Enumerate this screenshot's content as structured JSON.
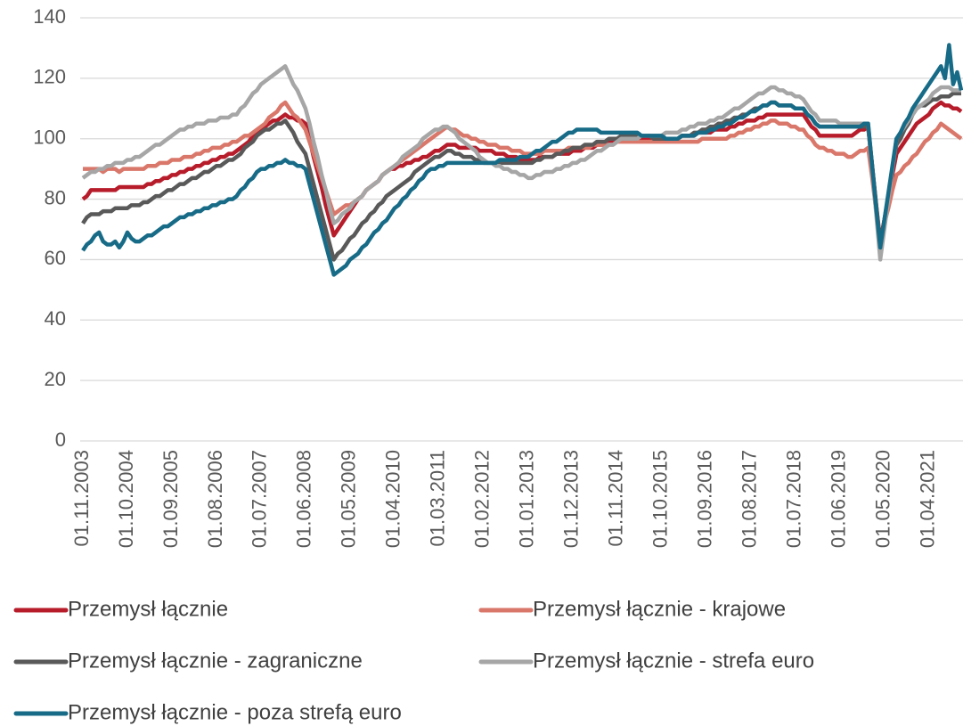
{
  "chart_data": {
    "type": "line",
    "categories": [
      "01.11.2003",
      null,
      null,
      null,
      null,
      null,
      null,
      null,
      null,
      null,
      null,
      "01.10.2004",
      null,
      null,
      null,
      null,
      null,
      null,
      null,
      null,
      null,
      null,
      "01.09.2005",
      null,
      null,
      null,
      null,
      null,
      null,
      null,
      null,
      null,
      null,
      "01.08.2006",
      null,
      null,
      null,
      null,
      null,
      null,
      null,
      null,
      null,
      null,
      "01.07.2007",
      null,
      null,
      null,
      null,
      null,
      null,
      null,
      null,
      null,
      null,
      "01.06.2008",
      null,
      null,
      null,
      null,
      null,
      null,
      null,
      null,
      null,
      null,
      "01.05.2009",
      null,
      null,
      null,
      null,
      null,
      null,
      null,
      null,
      null,
      null,
      "01.04.2010",
      null,
      null,
      null,
      null,
      null,
      null,
      null,
      null,
      null,
      null,
      "01.03.2011",
      null,
      null,
      null,
      null,
      null,
      null,
      null,
      null,
      null,
      null,
      "01.02.2012",
      null,
      null,
      null,
      null,
      null,
      null,
      null,
      null,
      null,
      null,
      "01.01.2013",
      null,
      null,
      null,
      null,
      null,
      null,
      null,
      null,
      null,
      null,
      "01.12.2013",
      null,
      null,
      null,
      null,
      null,
      null,
      null,
      null,
      null,
      null,
      "01.11.2014",
      null,
      null,
      null,
      null,
      null,
      null,
      null,
      null,
      null,
      null,
      "01.10.2015",
      null,
      null,
      null,
      null,
      null,
      null,
      null,
      null,
      null,
      null,
      "01.09.2016",
      null,
      null,
      null,
      null,
      null,
      null,
      null,
      null,
      null,
      null,
      "01.08.2017",
      null,
      null,
      null,
      null,
      null,
      null,
      null,
      null,
      null,
      null,
      "01.07.2018",
      null,
      null,
      null,
      null,
      null,
      null,
      null,
      null,
      null,
      null,
      "01.06.2019",
      null,
      null,
      null,
      null,
      null,
      null,
      null,
      null,
      null,
      null,
      "01.05.2020",
      null,
      null,
      null,
      null,
      null,
      null,
      null,
      null,
      null,
      null,
      "01.04.2021",
      null,
      null,
      null,
      null,
      null,
      null,
      null,
      null
    ],
    "series": [
      {
        "name": "Przemysł łącznie",
        "color": "#b71c2b",
        "values": [
          80,
          81,
          83,
          83,
          83,
          83,
          83,
          83,
          83,
          84,
          84,
          84,
          84,
          84,
          84,
          84,
          85,
          85,
          86,
          86,
          87,
          87,
          88,
          88,
          89,
          89,
          90,
          90,
          91,
          91,
          92,
          92,
          93,
          93,
          94,
          94,
          95,
          95,
          96,
          97,
          98,
          99,
          101,
          102,
          103,
          104,
          105,
          106,
          106,
          107,
          108,
          107,
          107,
          106,
          106,
          105,
          100,
          94,
          89,
          84,
          78,
          73,
          68,
          70,
          72,
          74,
          76,
          78,
          80,
          81,
          83,
          84,
          85,
          86,
          88,
          89,
          90,
          90,
          91,
          91,
          92,
          92,
          93,
          93,
          94,
          94,
          95,
          96,
          96,
          97,
          98,
          98,
          98,
          97,
          97,
          97,
          97,
          97,
          96,
          96,
          96,
          96,
          95,
          95,
          95,
          94,
          94,
          94,
          93,
          93,
          93,
          93,
          93,
          94,
          94,
          94,
          94,
          95,
          95,
          95,
          95,
          96,
          96,
          96,
          97,
          97,
          97,
          98,
          98,
          98,
          99,
          99,
          99,
          100,
          100,
          100,
          100,
          100,
          100,
          100,
          100,
          100,
          100,
          100,
          100,
          100,
          100,
          100,
          101,
          101,
          101,
          101,
          102,
          102,
          102,
          102,
          103,
          103,
          103,
          103,
          104,
          104,
          105,
          105,
          106,
          106,
          106,
          107,
          107,
          108,
          108,
          108,
          108,
          108,
          108,
          108,
          108,
          108,
          108,
          106,
          104,
          103,
          101,
          101,
          101,
          101,
          101,
          101,
          101,
          101,
          101,
          102,
          103,
          103,
          104,
          91,
          78,
          66,
          73,
          80,
          88,
          95,
          97,
          99,
          101,
          103,
          105,
          106,
          107,
          108,
          110,
          111,
          112,
          111,
          111,
          110,
          110,
          109
        ]
      },
      {
        "name": "Przemysł łącznie - krajowe",
        "color": "#d9776a",
        "values": [
          90,
          90,
          90,
          90,
          90,
          89,
          90,
          90,
          90,
          89,
          90,
          90,
          90,
          90,
          90,
          90,
          91,
          91,
          91,
          92,
          92,
          92,
          93,
          93,
          93,
          94,
          94,
          94,
          95,
          95,
          96,
          96,
          97,
          97,
          97,
          98,
          98,
          99,
          99,
          100,
          101,
          101,
          102,
          103,
          104,
          105,
          107,
          108,
          109,
          111,
          112,
          110,
          108,
          107,
          105,
          103,
          99,
          95,
          91,
          87,
          83,
          79,
          75,
          76,
          77,
          78,
          78,
          79,
          80,
          81,
          83,
          84,
          85,
          86,
          88,
          89,
          90,
          91,
          92,
          93,
          94,
          95,
          96,
          97,
          98,
          99,
          100,
          101,
          102,
          103,
          104,
          103,
          103,
          102,
          101,
          101,
          100,
          100,
          99,
          99,
          98,
          98,
          98,
          97,
          97,
          97,
          96,
          96,
          96,
          95,
          95,
          95,
          95,
          95,
          96,
          96,
          96,
          96,
          96,
          96,
          97,
          97,
          97,
          97,
          97,
          97,
          98,
          98,
          98,
          98,
          98,
          98,
          99,
          99,
          99,
          99,
          99,
          99,
          99,
          99,
          99,
          99,
          99,
          99,
          99,
          99,
          99,
          99,
          99,
          99,
          99,
          99,
          99,
          100,
          100,
          100,
          100,
          100,
          100,
          100,
          101,
          101,
          102,
          102,
          103,
          103,
          104,
          104,
          105,
          105,
          106,
          106,
          105,
          105,
          105,
          104,
          104,
          103,
          103,
          101,
          100,
          98,
          97,
          97,
          96,
          96,
          95,
          95,
          95,
          94,
          94,
          95,
          96,
          96,
          97,
          87,
          76,
          66,
          72,
          77,
          83,
          88,
          89,
          91,
          92,
          94,
          95,
          97,
          99,
          100,
          102,
          103,
          105,
          104,
          103,
          102,
          101,
          100
        ]
      },
      {
        "name": "Przemysł łącznie - zagraniczne",
        "color": "#595959",
        "values": [
          72,
          74,
          75,
          75,
          75,
          76,
          76,
          76,
          77,
          77,
          77,
          77,
          78,
          78,
          78,
          79,
          79,
          80,
          81,
          81,
          82,
          83,
          83,
          84,
          85,
          85,
          86,
          87,
          87,
          88,
          89,
          89,
          90,
          91,
          91,
          92,
          93,
          93,
          94,
          95,
          97,
          98,
          99,
          101,
          102,
          103,
          103,
          104,
          105,
          105,
          106,
          104,
          102,
          99,
          97,
          95,
          90,
          85,
          80,
          75,
          70,
          65,
          60,
          62,
          63,
          65,
          67,
          68,
          70,
          72,
          73,
          75,
          76,
          78,
          79,
          81,
          82,
          83,
          84,
          85,
          86,
          87,
          89,
          90,
          91,
          92,
          93,
          94,
          94,
          95,
          96,
          96,
          95,
          95,
          94,
          94,
          94,
          93,
          93,
          92,
          92,
          92,
          92,
          92,
          92,
          92,
          92,
          92,
          92,
          92,
          92,
          92,
          93,
          93,
          94,
          94,
          94,
          95,
          95,
          96,
          96,
          97,
          97,
          97,
          98,
          98,
          98,
          99,
          99,
          99,
          100,
          100,
          100,
          101,
          101,
          101,
          101,
          101,
          101,
          101,
          101,
          100,
          100,
          100,
          100,
          100,
          100,
          100,
          101,
          101,
          101,
          102,
          102,
          103,
          103,
          104,
          104,
          105,
          105,
          106,
          106,
          107,
          107,
          108,
          108,
          109,
          110,
          110,
          111,
          111,
          112,
          112,
          111,
          111,
          111,
          111,
          110,
          110,
          110,
          108,
          107,
          105,
          104,
          104,
          104,
          104,
          104,
          104,
          104,
          104,
          104,
          104,
          104,
          104,
          104,
          91,
          78,
          65,
          73,
          81,
          90,
          98,
          100,
          103,
          105,
          108,
          110,
          111,
          111,
          112,
          113,
          113,
          114,
          114,
          114,
          115,
          115,
          115
        ]
      },
      {
        "name": "Przemysł łącznie - strefa euro",
        "color": "#a6a6a6",
        "values": [
          87,
          88,
          89,
          89,
          90,
          90,
          91,
          91,
          92,
          92,
          92,
          93,
          93,
          94,
          94,
          95,
          96,
          97,
          98,
          98,
          99,
          100,
          101,
          102,
          103,
          103,
          104,
          104,
          105,
          105,
          105,
          106,
          106,
          106,
          107,
          107,
          107,
          108,
          108,
          110,
          111,
          113,
          115,
          116,
          118,
          119,
          120,
          121,
          122,
          123,
          124,
          121,
          118,
          116,
          113,
          110,
          105,
          99,
          94,
          88,
          83,
          77,
          72,
          73,
          75,
          76,
          77,
          79,
          80,
          81,
          83,
          84,
          85,
          86,
          88,
          89,
          90,
          91,
          92,
          94,
          95,
          96,
          97,
          98,
          100,
          101,
          102,
          103,
          103,
          104,
          104,
          103,
          102,
          100,
          99,
          98,
          97,
          96,
          94,
          93,
          92,
          92,
          91,
          91,
          90,
          90,
          89,
          89,
          88,
          88,
          87,
          87,
          88,
          88,
          89,
          89,
          89,
          90,
          90,
          91,
          91,
          92,
          92,
          93,
          93,
          94,
          95,
          96,
          96,
          97,
          98,
          98,
          99,
          100,
          100,
          100,
          100,
          100,
          101,
          101,
          101,
          101,
          101,
          101,
          102,
          102,
          102,
          102,
          103,
          103,
          104,
          104,
          105,
          105,
          105,
          106,
          106,
          107,
          107,
          108,
          109,
          110,
          110,
          111,
          112,
          113,
          114,
          115,
          115,
          116,
          117,
          117,
          116,
          116,
          115,
          115,
          114,
          114,
          113,
          111,
          109,
          108,
          106,
          106,
          106,
          106,
          106,
          105,
          105,
          105,
          105,
          105,
          105,
          105,
          105,
          90,
          75,
          60,
          70,
          80,
          90,
          100,
          102,
          104,
          106,
          108,
          110,
          111,
          112,
          113,
          115,
          116,
          117,
          117,
          117,
          116,
          116,
          116
        ]
      },
      {
        "name": "Przemysł łącznie - poza strefą euro",
        "color": "#176b87",
        "values": [
          63,
          65,
          66,
          68,
          69,
          66,
          65,
          65,
          66,
          64,
          66,
          69,
          67,
          66,
          66,
          67,
          68,
          68,
          69,
          70,
          71,
          71,
          72,
          73,
          74,
          74,
          75,
          75,
          76,
          76,
          77,
          77,
          78,
          78,
          79,
          79,
          80,
          80,
          81,
          83,
          84,
          86,
          87,
          89,
          90,
          90,
          91,
          91,
          92,
          92,
          93,
          92,
          92,
          91,
          91,
          90,
          85,
          80,
          75,
          70,
          65,
          60,
          55,
          56,
          57,
          58,
          60,
          61,
          62,
          64,
          65,
          67,
          69,
          70,
          72,
          73,
          75,
          77,
          78,
          80,
          81,
          83,
          84,
          86,
          87,
          89,
          90,
          90,
          91,
          91,
          92,
          92,
          92,
          92,
          92,
          92,
          92,
          92,
          92,
          92,
          92,
          92,
          92,
          93,
          93,
          93,
          93,
          93,
          94,
          94,
          94,
          95,
          96,
          96,
          97,
          98,
          99,
          99,
          100,
          101,
          102,
          102,
          103,
          103,
          103,
          103,
          103,
          103,
          102,
          102,
          102,
          102,
          102,
          102,
          102,
          102,
          102,
          102,
          101,
          101,
          101,
          101,
          101,
          101,
          100,
          100,
          100,
          100,
          101,
          101,
          101,
          101,
          102,
          102,
          102,
          103,
          103,
          104,
          104,
          105,
          105,
          106,
          107,
          107,
          108,
          109,
          109,
          110,
          111,
          111,
          112,
          112,
          111,
          111,
          111,
          111,
          110,
          110,
          110,
          108,
          107,
          105,
          104,
          104,
          104,
          104,
          104,
          104,
          104,
          104,
          104,
          104,
          104,
          105,
          105,
          91,
          77,
          64,
          73,
          82,
          91,
          100,
          102,
          105,
          107,
          110,
          112,
          114,
          116,
          118,
          120,
          122,
          124,
          120,
          131,
          118,
          122,
          116
        ]
      }
    ],
    "ylim": [
      0,
      140
    ],
    "yticks": [
      0,
      20,
      40,
      60,
      80,
      100,
      120,
      140
    ],
    "grid": true,
    "legend": "bottom"
  }
}
